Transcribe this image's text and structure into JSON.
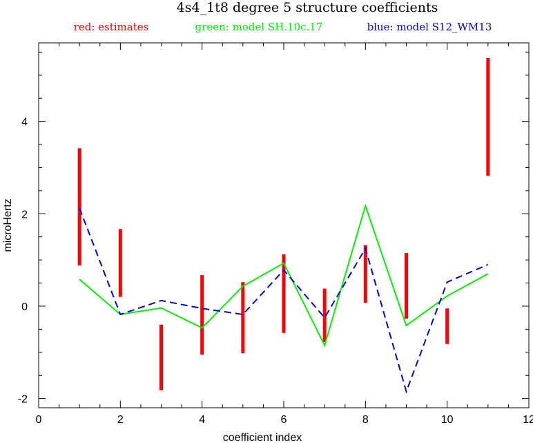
{
  "chart_data": {
    "type": "line",
    "title": "4s4_1t8 degree 5 structure coefficients",
    "legend": [
      {
        "text": "red: estimates",
        "color": "#ff0000"
      },
      {
        "text": "green: model SH.10c.17",
        "color": "#00ee00"
      },
      {
        "text": "blue: model S12_WM13",
        "color": "#0000dd"
      }
    ],
    "xlabel": "coefficient index",
    "ylabel": "microHertz",
    "xlim": [
      0,
      12
    ],
    "ylim": [
      -2.2,
      5.7
    ],
    "xticks": [
      0,
      2,
      4,
      6,
      8,
      10,
      12
    ],
    "yticks": [
      -2,
      0,
      2,
      4
    ],
    "grid": false,
    "estimates": {
      "name": "",
      "color": "#ff0000",
      "x": [
        1,
        2,
        3,
        4,
        5,
        6,
        7,
        8,
        9,
        10,
        11
      ],
      "low": [
        0.88,
        0.2,
        -1.82,
        -1.05,
        -1.02,
        -0.58,
        -0.78,
        0.07,
        -0.27,
        -0.82,
        2.82
      ],
      "high": [
        3.42,
        1.67,
        -0.4,
        0.67,
        0.52,
        1.12,
        0.38,
        1.32,
        1.15,
        -0.05,
        5.37
      ]
    },
    "series": [
      {
        "name": "",
        "style": "solid",
        "color": "#00ee00",
        "x": [
          1,
          2,
          3,
          4,
          5,
          6,
          7,
          8,
          9,
          10,
          11
        ],
        "y": [
          0.58,
          -0.18,
          -0.04,
          -0.47,
          0.43,
          0.93,
          -0.85,
          2.17,
          -0.42,
          0.22,
          0.7
        ]
      },
      {
        "name": "",
        "style": "dashed",
        "color": "#0000dd",
        "x": [
          1,
          2,
          3,
          4,
          5,
          6,
          7,
          8,
          9,
          10,
          11
        ],
        "y": [
          2.12,
          -0.18,
          0.12,
          -0.05,
          -0.18,
          0.78,
          -0.25,
          1.25,
          -1.85,
          0.52,
          0.9
        ]
      }
    ]
  }
}
